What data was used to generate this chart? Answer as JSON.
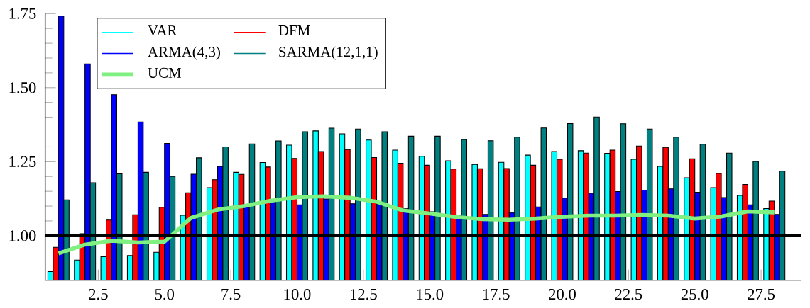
{
  "chart_data": {
    "type": "bar",
    "x": [
      1,
      2,
      3,
      4,
      5,
      6,
      7,
      8,
      9,
      10,
      11,
      12,
      13,
      14,
      15,
      16,
      17,
      18,
      19,
      20,
      21,
      22,
      23,
      24,
      25,
      26,
      27,
      28
    ],
    "series": [
      {
        "name": "VAR",
        "color": "#00ffff",
        "values": [
          0.879,
          0.918,
          0.929,
          0.933,
          0.944,
          1.069,
          1.162,
          1.214,
          1.247,
          1.306,
          1.354,
          1.344,
          1.323,
          1.289,
          1.268,
          1.253,
          1.241,
          1.248,
          1.272,
          1.284,
          1.287,
          1.278,
          1.258,
          1.234,
          1.196,
          1.162,
          1.136,
          1.092
        ]
      },
      {
        "name": "DFM",
        "color": "#ff0000",
        "values": [
          0.961,
          1.007,
          1.053,
          1.071,
          1.096,
          1.145,
          1.189,
          1.207,
          1.232,
          1.261,
          1.284,
          1.291,
          1.264,
          1.245,
          1.238,
          1.225,
          1.226,
          1.227,
          1.238,
          1.258,
          1.279,
          1.289,
          1.303,
          1.298,
          1.26,
          1.21,
          1.173,
          1.117
        ]
      },
      {
        "name": "ARMA(4,3)",
        "color": "#0000ff",
        "values": [
          1.742,
          1.58,
          1.476,
          1.384,
          1.312,
          1.208,
          1.234,
          1.1,
          1.12,
          1.104,
          1.124,
          1.108,
          1.113,
          1.091,
          1.081,
          1.07,
          1.072,
          1.078,
          1.097,
          1.127,
          1.143,
          1.149,
          1.154,
          1.158,
          1.147,
          1.129,
          1.104,
          1.072
        ]
      },
      {
        "name": "SARMA(12,1,1)",
        "color": "#008080",
        "values": [
          1.121,
          1.179,
          1.209,
          1.214,
          1.2,
          1.263,
          1.3,
          1.31,
          1.32,
          1.351,
          1.363,
          1.36,
          1.351,
          1.336,
          1.336,
          1.325,
          1.321,
          1.333,
          1.364,
          1.379,
          1.401,
          1.378,
          1.36,
          1.333,
          1.309,
          1.279,
          1.251,
          1.218
        ]
      },
      {
        "name": "UCM",
        "color": "#80f080",
        "type": "line",
        "values": [
          0.94,
          0.97,
          0.983,
          0.977,
          0.98,
          1.06,
          1.088,
          1.1,
          1.118,
          1.13,
          1.133,
          1.128,
          1.115,
          1.085,
          1.075,
          1.063,
          1.056,
          1.054,
          1.058,
          1.064,
          1.068,
          1.068,
          1.07,
          1.068,
          1.058,
          1.065,
          1.082,
          1.079
        ]
      }
    ],
    "xlim": [
      0.5,
      29
    ],
    "ylim": [
      0.85,
      1.75
    ],
    "xticks": [
      {
        "value": 2.5,
        "label": "2.5"
      },
      {
        "value": 5,
        "label": "5.0"
      },
      {
        "value": 7.5,
        "label": "7.5"
      },
      {
        "value": 10,
        "label": "10.0"
      },
      {
        "value": 12.5,
        "label": "12.5"
      },
      {
        "value": 15,
        "label": "15.0"
      },
      {
        "value": 17.5,
        "label": "17.5"
      },
      {
        "value": 20,
        "label": "20.0"
      },
      {
        "value": 22.5,
        "label": "22.5"
      },
      {
        "value": 25,
        "label": "25.0"
      },
      {
        "value": 27.5,
        "label": "27.5"
      }
    ],
    "yticks": [
      {
        "value": 1,
        "label": "1.00"
      },
      {
        "value": 1.25,
        "label": "1.25"
      },
      {
        "value": 1.5,
        "label": "1.50"
      },
      {
        "value": 1.75,
        "label": "1.75"
      }
    ],
    "ref_lines": [
      {
        "axis": "y",
        "value": 1,
        "color": "#000000"
      }
    ],
    "legend": "top left",
    "marker": "none"
  }
}
